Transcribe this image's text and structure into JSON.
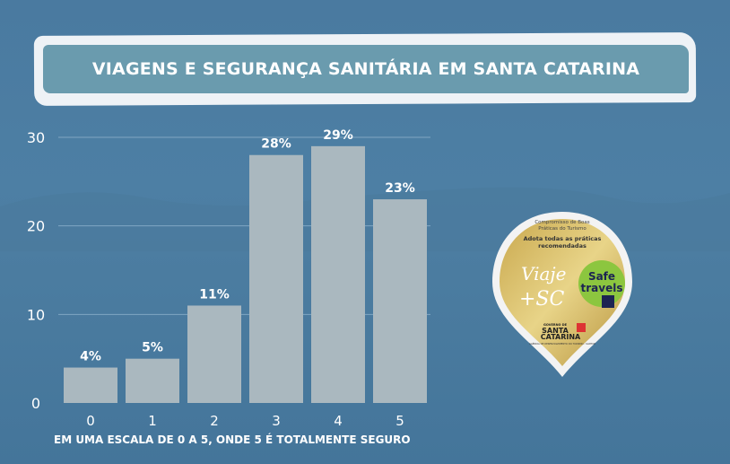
{
  "title": "VIAGENS E SEGURANÇA SANITÁRIA EM SANTA CATARINA",
  "chart_data": {
    "type": "bar",
    "title": "VIAGENS E SEGURANÇA SANITÁRIA EM SANTA CATARINA",
    "categories": [
      "0",
      "1",
      "2",
      "3",
      "4",
      "5"
    ],
    "values": [
      4,
      5,
      11,
      28,
      29,
      23
    ],
    "data_labels": [
      "4%",
      "5%",
      "11%",
      "28%",
      "29%",
      "23%"
    ],
    "xlabel": "EM UMA ESCALA DE 0 A 5, ONDE 5 É TOTALMENTE SEGURO",
    "ylabel": "",
    "ylim": [
      0,
      30
    ],
    "yticks": [
      0,
      10,
      20,
      30
    ],
    "grid": true,
    "bar_color": "#aab8bf"
  },
  "badge": {
    "line1": "Compromisso de Boas",
    "line2": "Práticas do Turismo",
    "line3": "Adota todas as práticas",
    "line4": "recomendadas",
    "viaje": "Viaje",
    "plus_sc": "+SC",
    "safe": "Safe",
    "travels": "travels",
    "gov": "GOVERNO DE",
    "santa": "SANTA",
    "catarina": "CATARINA",
    "agency": "AGÊNCIA DE DESENVOLVIMENTO DO TURISMO - SANTUR"
  }
}
